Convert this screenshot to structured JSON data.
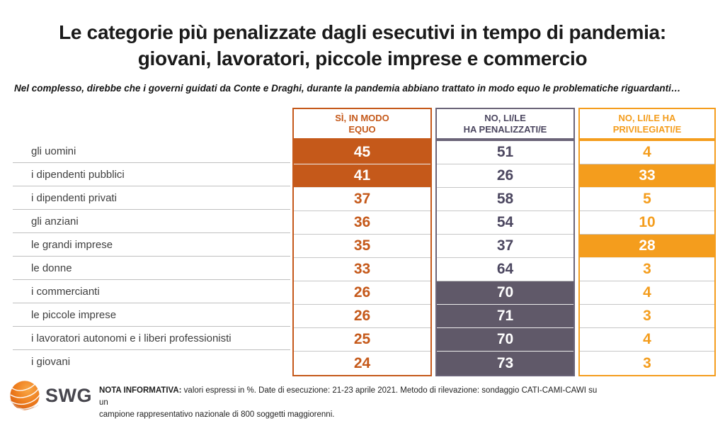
{
  "title": {
    "line1": "Le categorie più penalizzate dagli esecutivi in tempo di pandemia:",
    "line2": "giovani, lavoratori, piccole imprese e commercio"
  },
  "subtitle": "Nel complesso, direbbe che i governi guidati da Conte e Draghi, durante la pandemia abbiano trattato in modo equo le problematiche riguardanti…",
  "table": {
    "columns": [
      {
        "label_line1": "SÌ, IN MODO",
        "label_line2": "EQUO",
        "text_color": "#C5591A",
        "border_color": "#C5591A",
        "fill_color": "#C5591A"
      },
      {
        "label_line1": "NO, LI/LE",
        "label_line2": "HA PENALIZZATI/E",
        "text_color": "#4C4760",
        "border_color": "#6B6478",
        "fill_color": "#605969"
      },
      {
        "label_line1": "NO, LI/LE HA",
        "label_line2": "PRIVILEGIATI/E",
        "text_color": "#F49D1D",
        "border_color": "#F49D1D",
        "fill_color": "#F49D1D"
      }
    ],
    "rows": [
      {
        "label": "gli uomini",
        "values": [
          45,
          51,
          4
        ],
        "highlight": [
          true,
          false,
          false
        ]
      },
      {
        "label": "i dipendenti pubblici",
        "values": [
          41,
          26,
          33
        ],
        "highlight": [
          true,
          false,
          true
        ]
      },
      {
        "label": "i dipendenti privati",
        "values": [
          37,
          58,
          5
        ],
        "highlight": [
          false,
          false,
          false
        ]
      },
      {
        "label": "gli anziani",
        "values": [
          36,
          54,
          10
        ],
        "highlight": [
          false,
          false,
          false
        ]
      },
      {
        "label": "le grandi imprese",
        "values": [
          35,
          37,
          28
        ],
        "highlight": [
          false,
          false,
          true
        ]
      },
      {
        "label": "le donne",
        "values": [
          33,
          64,
          3
        ],
        "highlight": [
          false,
          false,
          false
        ]
      },
      {
        "label": "i commercianti",
        "values": [
          26,
          70,
          4
        ],
        "highlight": [
          false,
          true,
          false
        ]
      },
      {
        "label": "le piccole imprese",
        "values": [
          26,
          71,
          3
        ],
        "highlight": [
          false,
          true,
          false
        ]
      },
      {
        "label": "i lavoratori autonomi e i liberi professionisti",
        "values": [
          25,
          70,
          4
        ],
        "highlight": [
          false,
          true,
          false
        ]
      },
      {
        "label": "i giovani",
        "values": [
          24,
          73,
          3
        ],
        "highlight": [
          false,
          true,
          false
        ]
      }
    ]
  },
  "footer": {
    "logo_text": "SWG",
    "note_line1_bold": "NOTA INFORMATIVA:",
    "note_line1": " valori espressi in %. Date di esecuzione: 21-23 aprile 2021. Metodo di rilevazione: sondaggio CATI-CAMI-CAWI su un",
    "note_line2": "campione rappresentativo nazionale di 800 soggetti maggiorenni."
  },
  "colors": {
    "row_line": "#BFBFBF",
    "label_text": "#3F3F3F",
    "dark_orange": "#C5591A",
    "bright_orange": "#F49D1D",
    "purple_gray": "#605969"
  },
  "chart_data": {
    "type": "table",
    "title": "Le categorie più penalizzate dagli esecutivi in tempo di pandemia: giovani, lavoratori, piccole imprese e commercio",
    "question": "Nel complesso, direbbe che i governi guidati da Conte e Draghi, durante la pandemia abbiano trattato in modo equo le problematiche riguardanti…",
    "unit": "%",
    "categories": [
      "gli uomini",
      "i dipendenti pubblici",
      "i dipendenti privati",
      "gli anziani",
      "le grandi imprese",
      "le donne",
      "i commercianti",
      "le piccole imprese",
      "i lavoratori autonomi e i liberi professionisti",
      "i giovani"
    ],
    "series": [
      {
        "name": "Sì, in modo equo",
        "values": [
          45,
          41,
          37,
          36,
          35,
          33,
          26,
          26,
          25,
          24
        ]
      },
      {
        "name": "No, li/le ha penalizzati/e",
        "values": [
          51,
          26,
          58,
          54,
          37,
          64,
          70,
          71,
          70,
          73
        ]
      },
      {
        "name": "No, li/le ha privilegiati/e",
        "values": [
          4,
          33,
          5,
          10,
          28,
          3,
          4,
          3,
          4,
          3
        ]
      }
    ]
  }
}
